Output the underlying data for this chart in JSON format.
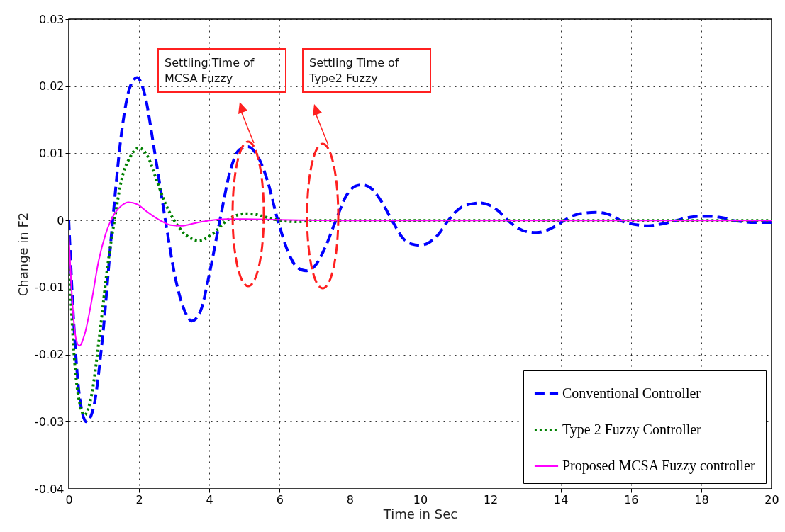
{
  "chart_data": {
    "type": "line",
    "xlabel": "Time in Sec",
    "ylabel": "Change in F2",
    "xlim": [
      0,
      20
    ],
    "xticks": [
      0,
      2,
      4,
      6,
      8,
      10,
      12,
      14,
      16,
      18,
      20
    ],
    "ylim": [
      -0.04,
      0.03
    ],
    "yticks": [
      -0.04,
      -0.03,
      -0.02,
      -0.01,
      0,
      0.01,
      0.02,
      0.03
    ],
    "grid": true,
    "legend": "bottom right",
    "marker": "none",
    "series": [
      {
        "name": "Conventional Controller",
        "color": "#0000ff",
        "line_style": "dashed",
        "x": [
          0,
          0.15,
          0.3,
          0.5,
          0.7,
          0.95,
          1.25,
          1.5,
          1.75,
          1.95,
          2.15,
          2.45,
          2.75,
          3.05,
          3.3,
          3.5,
          3.75,
          4.0,
          4.3,
          4.6,
          4.85,
          5.1,
          5.35,
          5.65,
          5.95,
          6.25,
          6.5,
          6.75,
          7.0,
          7.3,
          7.6,
          7.9,
          8.15,
          8.35,
          8.6,
          8.9,
          9.2,
          9.5,
          9.75,
          10.0,
          10.25,
          10.5,
          10.8,
          11.1,
          11.4,
          11.7,
          12.0,
          12.25,
          12.5,
          12.8,
          13.05,
          13.3,
          13.55,
          13.8,
          14.1,
          14.4,
          14.7,
          15.0,
          15.3,
          15.5,
          15.7,
          16.0,
          16.25,
          16.5,
          16.8,
          17.0,
          17.3,
          17.6,
          17.9,
          18.2,
          18.5,
          18.7,
          18.9,
          19.2,
          19.5,
          19.8,
          20
        ],
        "values": [
          0,
          -0.016,
          -0.026,
          -0.03,
          -0.028,
          -0.018,
          0,
          0.013,
          0.02,
          0.0213,
          0.019,
          0.01,
          0,
          -0.009,
          -0.0135,
          -0.015,
          -0.0135,
          -0.008,
          0,
          0.0075,
          0.0105,
          0.011,
          0.0098,
          0.006,
          0,
          -0.0048,
          -0.007,
          -0.0075,
          -0.0068,
          -0.004,
          0,
          0.0037,
          0.0051,
          0.0053,
          0.0048,
          0.0028,
          0,
          -0.0026,
          -0.0035,
          -0.0037,
          -0.0033,
          -0.0022,
          0,
          0.0017,
          0.0024,
          0.0026,
          0.0022,
          0.0013,
          0,
          -0.0012,
          -0.0017,
          -0.0018,
          -0.0016,
          -0.001,
          0,
          0.0008,
          0.0011,
          0.0012,
          0.001,
          0.0006,
          0,
          -0.0005,
          -0.0007,
          -0.0008,
          -0.0006,
          -0.0004,
          0,
          0.0004,
          0.0006,
          0.0006,
          0.0005,
          0.0003,
          0,
          -0.0002,
          -0.0003,
          -0.0003,
          -0.0003
        ]
      },
      {
        "name": "Type 2 Fuzzy Controller",
        "color": "#008000",
        "line_style": "dotted",
        "x": [
          0,
          0.15,
          0.3,
          0.45,
          0.65,
          0.9,
          1.1,
          1.3,
          1.5,
          1.75,
          2.0,
          2.25,
          2.5,
          2.75,
          3.0,
          3.3,
          3.7,
          4.1,
          4.5,
          4.8,
          5.0,
          5.3,
          5.6,
          6.0,
          6.5,
          7.0,
          8.0,
          10,
          12,
          14,
          16,
          18,
          20
        ],
        "values": [
          -0.005,
          -0.02,
          -0.027,
          -0.029,
          -0.026,
          -0.016,
          -0.007,
          0,
          0.006,
          0.0095,
          0.0108,
          0.0095,
          0.006,
          0.0025,
          0,
          -0.002,
          -0.003,
          -0.002,
          0,
          0.0008,
          0.001,
          0.0009,
          0.0005,
          0,
          -0.0002,
          0,
          0,
          0,
          0,
          0,
          0,
          0,
          0
        ]
      },
      {
        "name": "Proposed MCSA Fuzzy controller",
        "color": "#ff00ff",
        "line_style": "solid",
        "x": [
          0,
          0.1,
          0.2,
          0.3,
          0.45,
          0.65,
          0.85,
          1.05,
          1.3,
          1.5,
          1.7,
          1.95,
          2.2,
          2.6,
          2.9,
          3.2,
          3.6,
          4.0,
          4.5,
          5.0,
          6.0,
          8,
          10,
          12,
          14,
          16,
          18,
          20
        ],
        "values": [
          -0.002,
          -0.012,
          -0.0175,
          -0.0187,
          -0.017,
          -0.012,
          -0.006,
          -0.002,
          0.001,
          0.0022,
          0.0027,
          0.0024,
          0.0014,
          0,
          -0.0007,
          -0.0008,
          -0.0004,
          0,
          0.0002,
          0.0002,
          0.0001,
          0,
          0,
          0,
          0,
          0,
          0,
          0
        ]
      }
    ],
    "annotations": [
      "Settling Time of MCSA Fuzzy",
      "Settling Time of Type2 Fuzzy"
    ]
  }
}
